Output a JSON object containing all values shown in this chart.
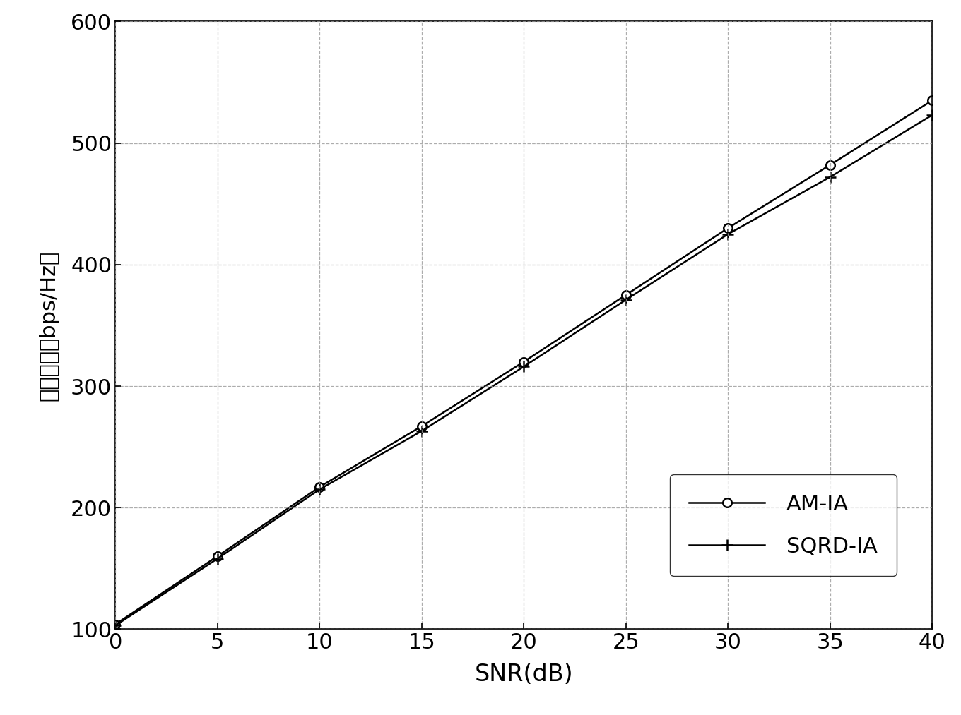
{
  "snr": [
    0,
    5,
    10,
    15,
    20,
    25,
    30,
    35,
    40
  ],
  "am_ia": [
    104,
    160,
    217,
    267,
    320,
    375,
    430,
    482,
    535
  ],
  "sqrd_ia": [
    103,
    158,
    215,
    263,
    316,
    371,
    425,
    472,
    523
  ],
  "xlabel": "SNR(dB)",
  "ylabel_chinese": "系统容量",
  "ylabel_unit": "（bps/Hz）",
  "xlim": [
    0,
    40
  ],
  "ylim": [
    100,
    600
  ],
  "xticks": [
    0,
    5,
    10,
    15,
    20,
    25,
    30,
    35,
    40
  ],
  "yticks": [
    100,
    200,
    300,
    400,
    500,
    600
  ],
  "legend_am": "AM-IA",
  "legend_sqrd": "SQRD-IA",
  "line_color": "#000000",
  "bg_color": "#ffffff",
  "grid_color": "#999999"
}
